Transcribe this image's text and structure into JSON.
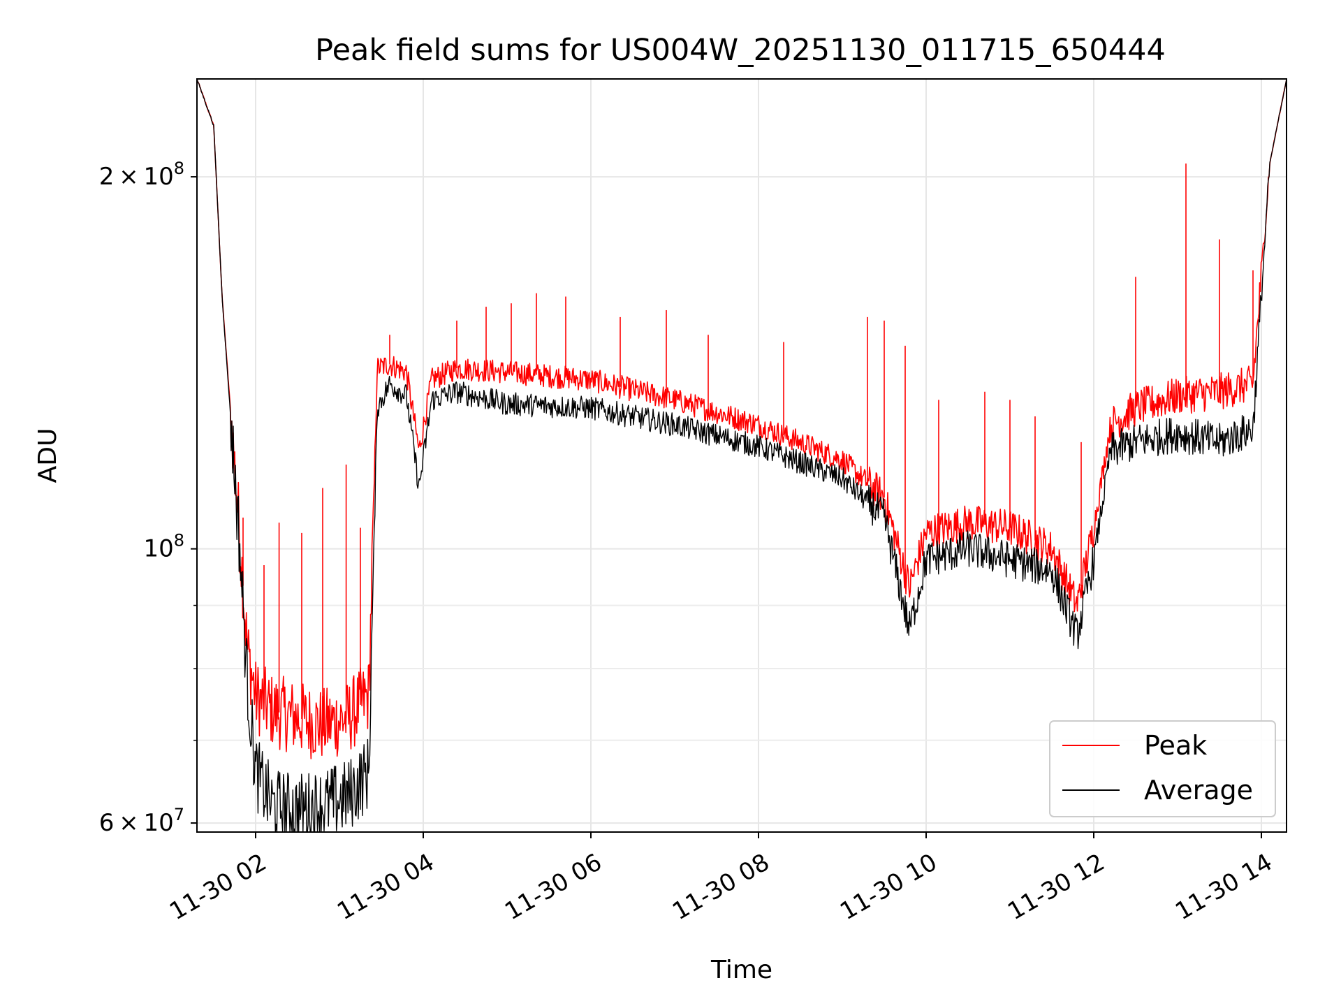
{
  "chart_data": {
    "type": "line",
    "title": "Peak field sums for US004W_20251130_011715_650444",
    "xlabel": "Time",
    "ylabel": "ADU",
    "y_scale": "log",
    "grid": true,
    "legend_position": "lower-right",
    "xlim_hours": [
      1.3,
      14.3
    ],
    "ylim": [
      59000000,
      240000000
    ],
    "x_ticks": [
      {
        "hour": 2,
        "label": "11-30 02"
      },
      {
        "hour": 4,
        "label": "11-30 04"
      },
      {
        "hour": 6,
        "label": "11-30 06"
      },
      {
        "hour": 8,
        "label": "11-30 08"
      },
      {
        "hour": 10,
        "label": "11-30 10"
      },
      {
        "hour": 12,
        "label": "11-30 12"
      },
      {
        "hour": 14,
        "label": "11-30 14"
      }
    ],
    "y_major_ticks": [
      {
        "value": 60000000,
        "mantissa": "6",
        "times": "×",
        "base": "10",
        "exp": "7"
      },
      {
        "value": 100000000,
        "mantissa": "",
        "times": "",
        "base": "10",
        "exp": "8"
      },
      {
        "value": 200000000,
        "mantissa": "2",
        "times": "×",
        "base": "10",
        "exp": "8"
      }
    ],
    "y_minor_ticks": [
      70000000,
      80000000,
      90000000
    ],
    "series": [
      {
        "name": "Peak",
        "color": "#ff0000",
        "x_hours": [
          1.3,
          1.5,
          1.6,
          1.8,
          1.9,
          2.0,
          2.2,
          2.5,
          2.8,
          3.1,
          3.35,
          3.45,
          3.6,
          3.8,
          3.95,
          4.1,
          4.4,
          5.0,
          6.0,
          7.0,
          8.0,
          9.0,
          9.5,
          9.8,
          10.0,
          10.5,
          11.0,
          11.5,
          11.8,
          12.0,
          12.2,
          12.5,
          13.0,
          13.5,
          13.9,
          14.1,
          14.3
        ],
        "y": [
          240000000,
          220000000,
          160000000,
          105000000,
          83000000,
          76000000,
          74000000,
          73000000,
          72000000,
          73000000,
          76000000,
          140000000,
          141000000,
          139000000,
          120000000,
          137000000,
          140000000,
          139000000,
          137000000,
          132000000,
          126000000,
          118000000,
          110000000,
          93000000,
          103000000,
          105000000,
          104000000,
          100000000,
          90000000,
          104000000,
          126000000,
          130000000,
          133000000,
          134000000,
          136000000,
          205000000,
          240000000
        ],
        "spikes": [
          {
            "hour": 1.85,
            "value": 106000000
          },
          {
            "hour": 2.1,
            "value": 97000000
          },
          {
            "hour": 2.28,
            "value": 105000000
          },
          {
            "hour": 2.55,
            "value": 103000000
          },
          {
            "hour": 2.8,
            "value": 112000000
          },
          {
            "hour": 3.08,
            "value": 117000000
          },
          {
            "hour": 3.25,
            "value": 104000000
          },
          {
            "hour": 3.6,
            "value": 149000000
          },
          {
            "hour": 4.4,
            "value": 153000000
          },
          {
            "hour": 4.75,
            "value": 157000000
          },
          {
            "hour": 5.05,
            "value": 158000000
          },
          {
            "hour": 5.35,
            "value": 161000000
          },
          {
            "hour": 5.7,
            "value": 160000000
          },
          {
            "hour": 6.35,
            "value": 154000000
          },
          {
            "hour": 6.9,
            "value": 156000000
          },
          {
            "hour": 7.4,
            "value": 149000000
          },
          {
            "hour": 8.3,
            "value": 147000000
          },
          {
            "hour": 9.3,
            "value": 154000000
          },
          {
            "hour": 9.5,
            "value": 153000000
          },
          {
            "hour": 9.75,
            "value": 146000000
          },
          {
            "hour": 10.15,
            "value": 132000000
          },
          {
            "hour": 10.7,
            "value": 134000000
          },
          {
            "hour": 11.0,
            "value": 132000000
          },
          {
            "hour": 11.3,
            "value": 128000000
          },
          {
            "hour": 11.85,
            "value": 122000000
          },
          {
            "hour": 12.5,
            "value": 166000000
          },
          {
            "hour": 13.1,
            "value": 205000000
          },
          {
            "hour": 13.5,
            "value": 178000000
          },
          {
            "hour": 13.9,
            "value": 168000000
          }
        ]
      },
      {
        "name": "Average",
        "color": "#000000",
        "x_hours": [
          1.3,
          1.5,
          1.6,
          1.8,
          1.9,
          2.0,
          2.2,
          2.5,
          2.8,
          3.1,
          3.35,
          3.45,
          3.6,
          3.8,
          3.95,
          4.1,
          4.4,
          5.0,
          6.0,
          7.0,
          8.0,
          9.0,
          9.5,
          9.8,
          10.0,
          10.5,
          11.0,
          11.5,
          11.8,
          12.0,
          12.2,
          12.5,
          13.0,
          13.5,
          13.9,
          14.1,
          14.3
        ],
        "y": [
          240000000,
          220000000,
          160000000,
          103000000,
          78000000,
          66000000,
          62000000,
          61500000,
          62000000,
          63000000,
          66000000,
          130000000,
          136000000,
          133000000,
          112000000,
          132000000,
          134000000,
          131000000,
          130000000,
          126000000,
          121000000,
          114000000,
          106000000,
          86000000,
          98000000,
          100000000,
          98000000,
          96000000,
          85000000,
          98000000,
          120000000,
          122000000,
          124000000,
          122000000,
          125000000,
          205000000,
          240000000
        ]
      }
    ]
  }
}
